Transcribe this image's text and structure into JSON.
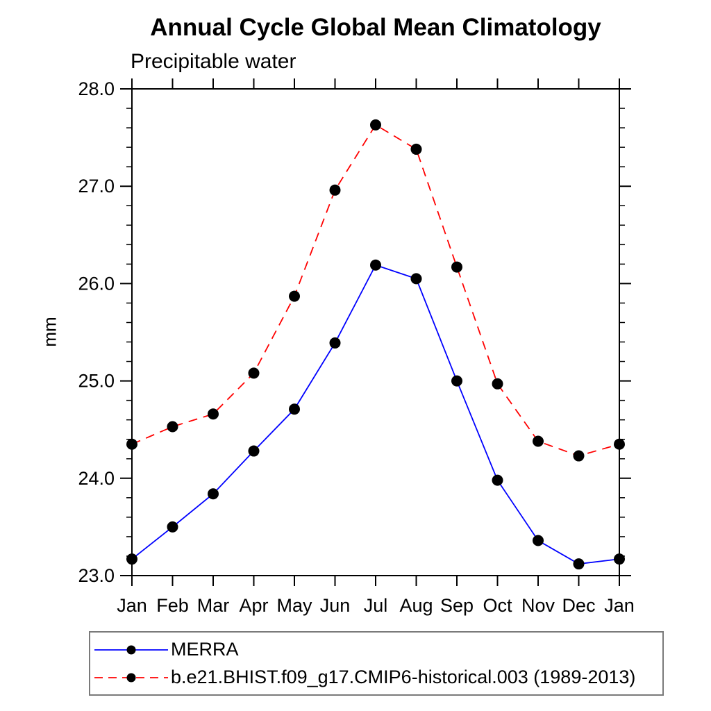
{
  "chart_data": {
    "type": "line",
    "title": "Annual Cycle Global Mean Climatology",
    "subtitle": "Precipitable water",
    "ylabel": "mm",
    "xlabel": "",
    "ylim": [
      23.0,
      28.0
    ],
    "ytick_values": [
      23.0,
      24.0,
      25.0,
      26.0,
      27.0,
      28.0
    ],
    "ytick_labels": [
      "23.0",
      "24.0",
      "25.0",
      "26.0",
      "27.0",
      "28.0"
    ],
    "y_minor_step": 0.2,
    "categories": [
      "Jan",
      "Feb",
      "Mar",
      "Apr",
      "May",
      "Jun",
      "Jul",
      "Aug",
      "Sep",
      "Oct",
      "Nov",
      "Dec",
      "Jan"
    ],
    "grid": false,
    "legend_position": "bottom-left",
    "marker": {
      "shape": "circle",
      "color": "#000000"
    },
    "axis_color": "#000000",
    "series": [
      {
        "name": "MERRA",
        "color": "#0000ff",
        "style": "solid",
        "values": [
          23.17,
          23.5,
          23.84,
          24.28,
          24.71,
          25.39,
          26.19,
          26.05,
          25.0,
          23.98,
          23.36,
          23.12,
          23.17
        ]
      },
      {
        "name": "b.e21.BHIST.f09_g17.CMIP6-historical.003 (1989-2013)",
        "color": "#ff0000",
        "style": "dashed",
        "values": [
          24.35,
          24.53,
          24.66,
          25.08,
          25.87,
          26.96,
          27.63,
          27.38,
          26.17,
          24.97,
          24.38,
          24.23,
          24.35
        ]
      }
    ]
  }
}
